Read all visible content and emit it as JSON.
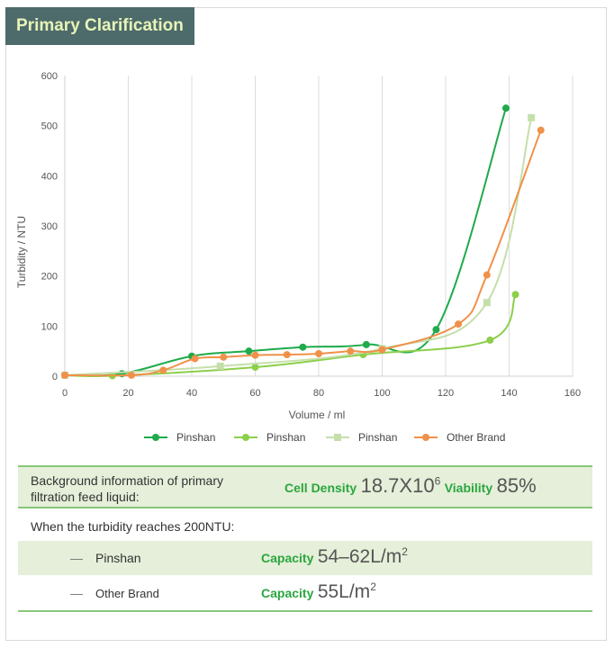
{
  "title": "Primary Clarification",
  "chart_data": {
    "type": "line",
    "xlabel": "Volume / ml",
    "ylabel": "Turbidity / NTU",
    "xlim": [
      0,
      160
    ],
    "ylim": [
      0,
      600
    ],
    "xticks": [
      0,
      20,
      40,
      60,
      80,
      100,
      120,
      140,
      160
    ],
    "yticks": [
      0,
      100,
      200,
      300,
      400,
      500,
      600
    ],
    "grid": "vertical",
    "legend_position": "bottom",
    "series": [
      {
        "name": "Pinshan",
        "color": "#1faa4b",
        "marker": "circle",
        "x": [
          0,
          18,
          40,
          58,
          75,
          95,
          117,
          139
        ],
        "y": [
          2,
          5,
          40,
          50,
          58,
          63,
          93,
          535
        ]
      },
      {
        "name": "Pinshan",
        "color": "#8ccf4a",
        "marker": "circle",
        "x": [
          0,
          15,
          60,
          94,
          134,
          142
        ],
        "y": [
          2,
          1,
          18,
          43,
          72,
          163
        ]
      },
      {
        "name": "Pinshan",
        "color": "#c5dfaa",
        "marker": "square",
        "x": [
          0,
          49,
          100,
          133,
          147
        ],
        "y": [
          2,
          20,
          55,
          147,
          516
        ]
      },
      {
        "name": "Other Brand",
        "color": "#f0914a",
        "marker": "circle",
        "x": [
          0,
          21,
          31,
          41,
          50,
          60,
          70,
          80,
          90,
          100,
          124,
          133,
          150
        ],
        "y": [
          2,
          2,
          12,
          35,
          38,
          42,
          43,
          45,
          50,
          53,
          104,
          202,
          491
        ]
      }
    ]
  },
  "background": {
    "label": "Background information of primary filtration feed liquid:",
    "cell_density_label": "Cell Density",
    "cell_density_value": "18.7X10",
    "cell_density_exp": "6",
    "viability_label": "Viability",
    "viability_value": "85%"
  },
  "turbidity_heading": "When the turbidity reaches 200NTU:",
  "brands": [
    {
      "dash": "—",
      "name": "Pinshan",
      "capacity_label": "Capacity",
      "capacity_value": "54–62L/m",
      "capacity_exp": "2"
    },
    {
      "dash": "—",
      "name": "Other Brand",
      "capacity_label": "Capacity",
      "capacity_value": "55L/m",
      "capacity_exp": "2"
    }
  ]
}
